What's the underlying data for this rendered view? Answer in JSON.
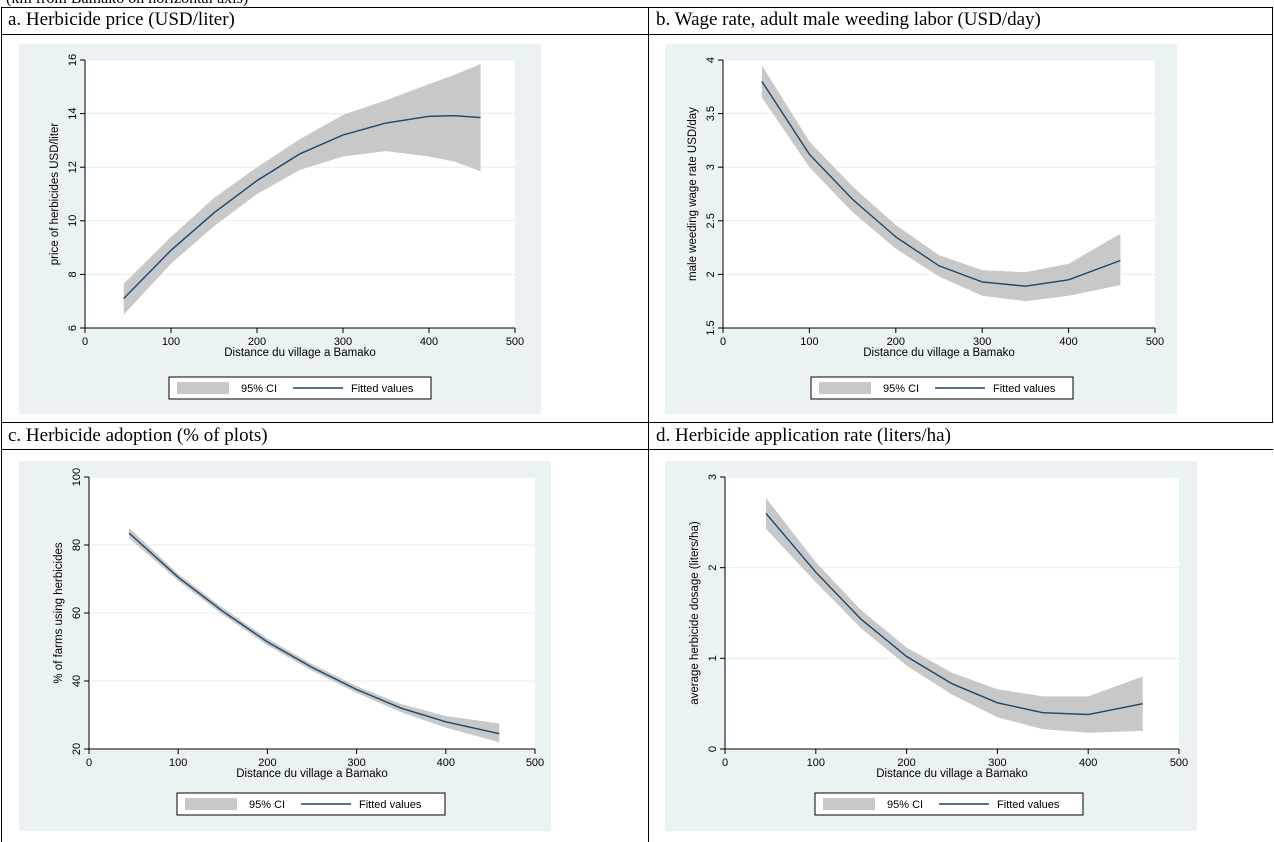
{
  "top_note": "(km from Bamako on horizontal axis)",
  "chart_data": [
    {
      "type": "line",
      "panel_title": "a. Herbicide price (USD/liter)",
      "xlabel": "Distance du village a Bamako",
      "ylabel": "price of herbicides USD/liter",
      "xlim": [
        0,
        500
      ],
      "ylim": [
        6,
        16
      ],
      "xticks": [
        0,
        100,
        200,
        300,
        400,
        500
      ],
      "yticks": [
        6,
        8,
        10,
        12,
        14,
        16
      ],
      "ytick_labels": [
        "6",
        "8",
        "10",
        "12",
        "14",
        "16"
      ],
      "grid": "horizontal",
      "legend": [
        "95% CI",
        "Fitted values"
      ],
      "legend_placement": "bottom",
      "series": [
        {
          "name": "Fitted values",
          "x": [
            45,
            100,
            150,
            200,
            250,
            300,
            350,
            400,
            430,
            460
          ],
          "y": [
            7.1,
            8.9,
            10.3,
            11.5,
            12.5,
            13.2,
            13.65,
            13.9,
            13.92,
            13.85
          ]
        },
        {
          "name": "95% CI",
          "x": [
            45,
            100,
            150,
            200,
            250,
            300,
            350,
            400,
            430,
            460
          ],
          "lower": [
            6.5,
            8.4,
            9.8,
            11.0,
            11.9,
            12.4,
            12.6,
            12.4,
            12.2,
            11.85
          ],
          "upper": [
            7.65,
            9.4,
            10.85,
            12.0,
            13.05,
            13.95,
            14.5,
            15.1,
            15.45,
            15.85
          ]
        }
      ]
    },
    {
      "type": "line",
      "panel_title": "b. Wage rate, adult male weeding labor (USD/day)",
      "xlabel": "Distance du village a Bamako",
      "ylabel": "male weeding wage rate USD/day",
      "xlim": [
        0,
        500
      ],
      "ylim": [
        1.5,
        4
      ],
      "xticks": [
        0,
        100,
        200,
        300,
        400,
        500
      ],
      "yticks": [
        1.5,
        2,
        2.5,
        3,
        3.5,
        4
      ],
      "ytick_labels": [
        "1.5",
        "2",
        "2.5",
        "3",
        "3.5",
        "4"
      ],
      "grid": "horizontal",
      "legend": [
        "95% CI",
        "Fitted values"
      ],
      "legend_placement": "bottom",
      "series": [
        {
          "name": "Fitted values",
          "x": [
            45,
            100,
            150,
            200,
            250,
            300,
            350,
            400,
            460
          ],
          "y": [
            3.8,
            3.12,
            2.7,
            2.35,
            2.08,
            1.93,
            1.89,
            1.95,
            2.13
          ]
        },
        {
          "name": "95% CI",
          "x": [
            45,
            100,
            150,
            200,
            250,
            300,
            350,
            400,
            460
          ],
          "lower": [
            3.65,
            3.0,
            2.58,
            2.24,
            1.98,
            1.8,
            1.75,
            1.8,
            1.9
          ],
          "upper": [
            3.95,
            3.24,
            2.82,
            2.46,
            2.18,
            2.04,
            2.02,
            2.1,
            2.38
          ]
        }
      ]
    },
    {
      "type": "line",
      "panel_title": "c. Herbicide adoption (% of plots)",
      "xlabel": "Distance du village a Bamako",
      "ylabel": "% of farms using herbicides",
      "xlim": [
        0,
        500
      ],
      "ylim": [
        20,
        100
      ],
      "xticks": [
        0,
        100,
        200,
        300,
        400,
        500
      ],
      "yticks": [
        20,
        40,
        60,
        80,
        100
      ],
      "ytick_labels": [
        "20",
        "40",
        "60",
        "80",
        "100"
      ],
      "grid": "horizontal",
      "legend": [
        "95% CI",
        "Fitted values"
      ],
      "legend_placement": "bottom",
      "series": [
        {
          "name": "Fitted values",
          "x": [
            45,
            100,
            150,
            200,
            250,
            300,
            350,
            400,
            460
          ],
          "y": [
            83.5,
            70.5,
            60.5,
            51.5,
            44,
            37.5,
            32,
            28,
            24.5
          ]
        },
        {
          "name": "95% CI",
          "x": [
            45,
            100,
            150,
            200,
            250,
            300,
            350,
            400,
            460
          ],
          "lower": [
            82,
            69.5,
            59.5,
            50.5,
            43,
            36.5,
            30.8,
            26.3,
            22
          ],
          "upper": [
            85,
            71.5,
            61.5,
            52.5,
            45,
            38.5,
            33.2,
            29.7,
            27.5
          ]
        }
      ]
    },
    {
      "type": "line",
      "panel_title": "d. Herbicide application rate (liters/ha)",
      "xlabel": "Distance du village a Bamako",
      "ylabel": "average herbicide dosage (liters/ha)",
      "xlim": [
        0,
        500
      ],
      "ylim": [
        0,
        3
      ],
      "xticks": [
        0,
        100,
        200,
        300,
        400,
        500
      ],
      "yticks": [
        0,
        1,
        2,
        3
      ],
      "ytick_labels": [
        "0",
        "1",
        "2",
        "3"
      ],
      "grid": "horizontal",
      "legend": [
        "95% CI",
        "Fitted values"
      ],
      "legend_placement": "bottom",
      "series": [
        {
          "name": "Fitted values",
          "x": [
            45,
            100,
            150,
            200,
            250,
            300,
            350,
            400,
            460
          ],
          "y": [
            2.6,
            1.95,
            1.43,
            1.02,
            0.72,
            0.51,
            0.4,
            0.38,
            0.5
          ]
        },
        {
          "name": "95% CI",
          "x": [
            45,
            100,
            150,
            200,
            250,
            300,
            350,
            400,
            460
          ],
          "lower": [
            2.43,
            1.84,
            1.33,
            0.92,
            0.6,
            0.35,
            0.22,
            0.18,
            0.2
          ],
          "upper": [
            2.77,
            2.06,
            1.53,
            1.12,
            0.84,
            0.66,
            0.58,
            0.58,
            0.8
          ]
        }
      ]
    }
  ]
}
